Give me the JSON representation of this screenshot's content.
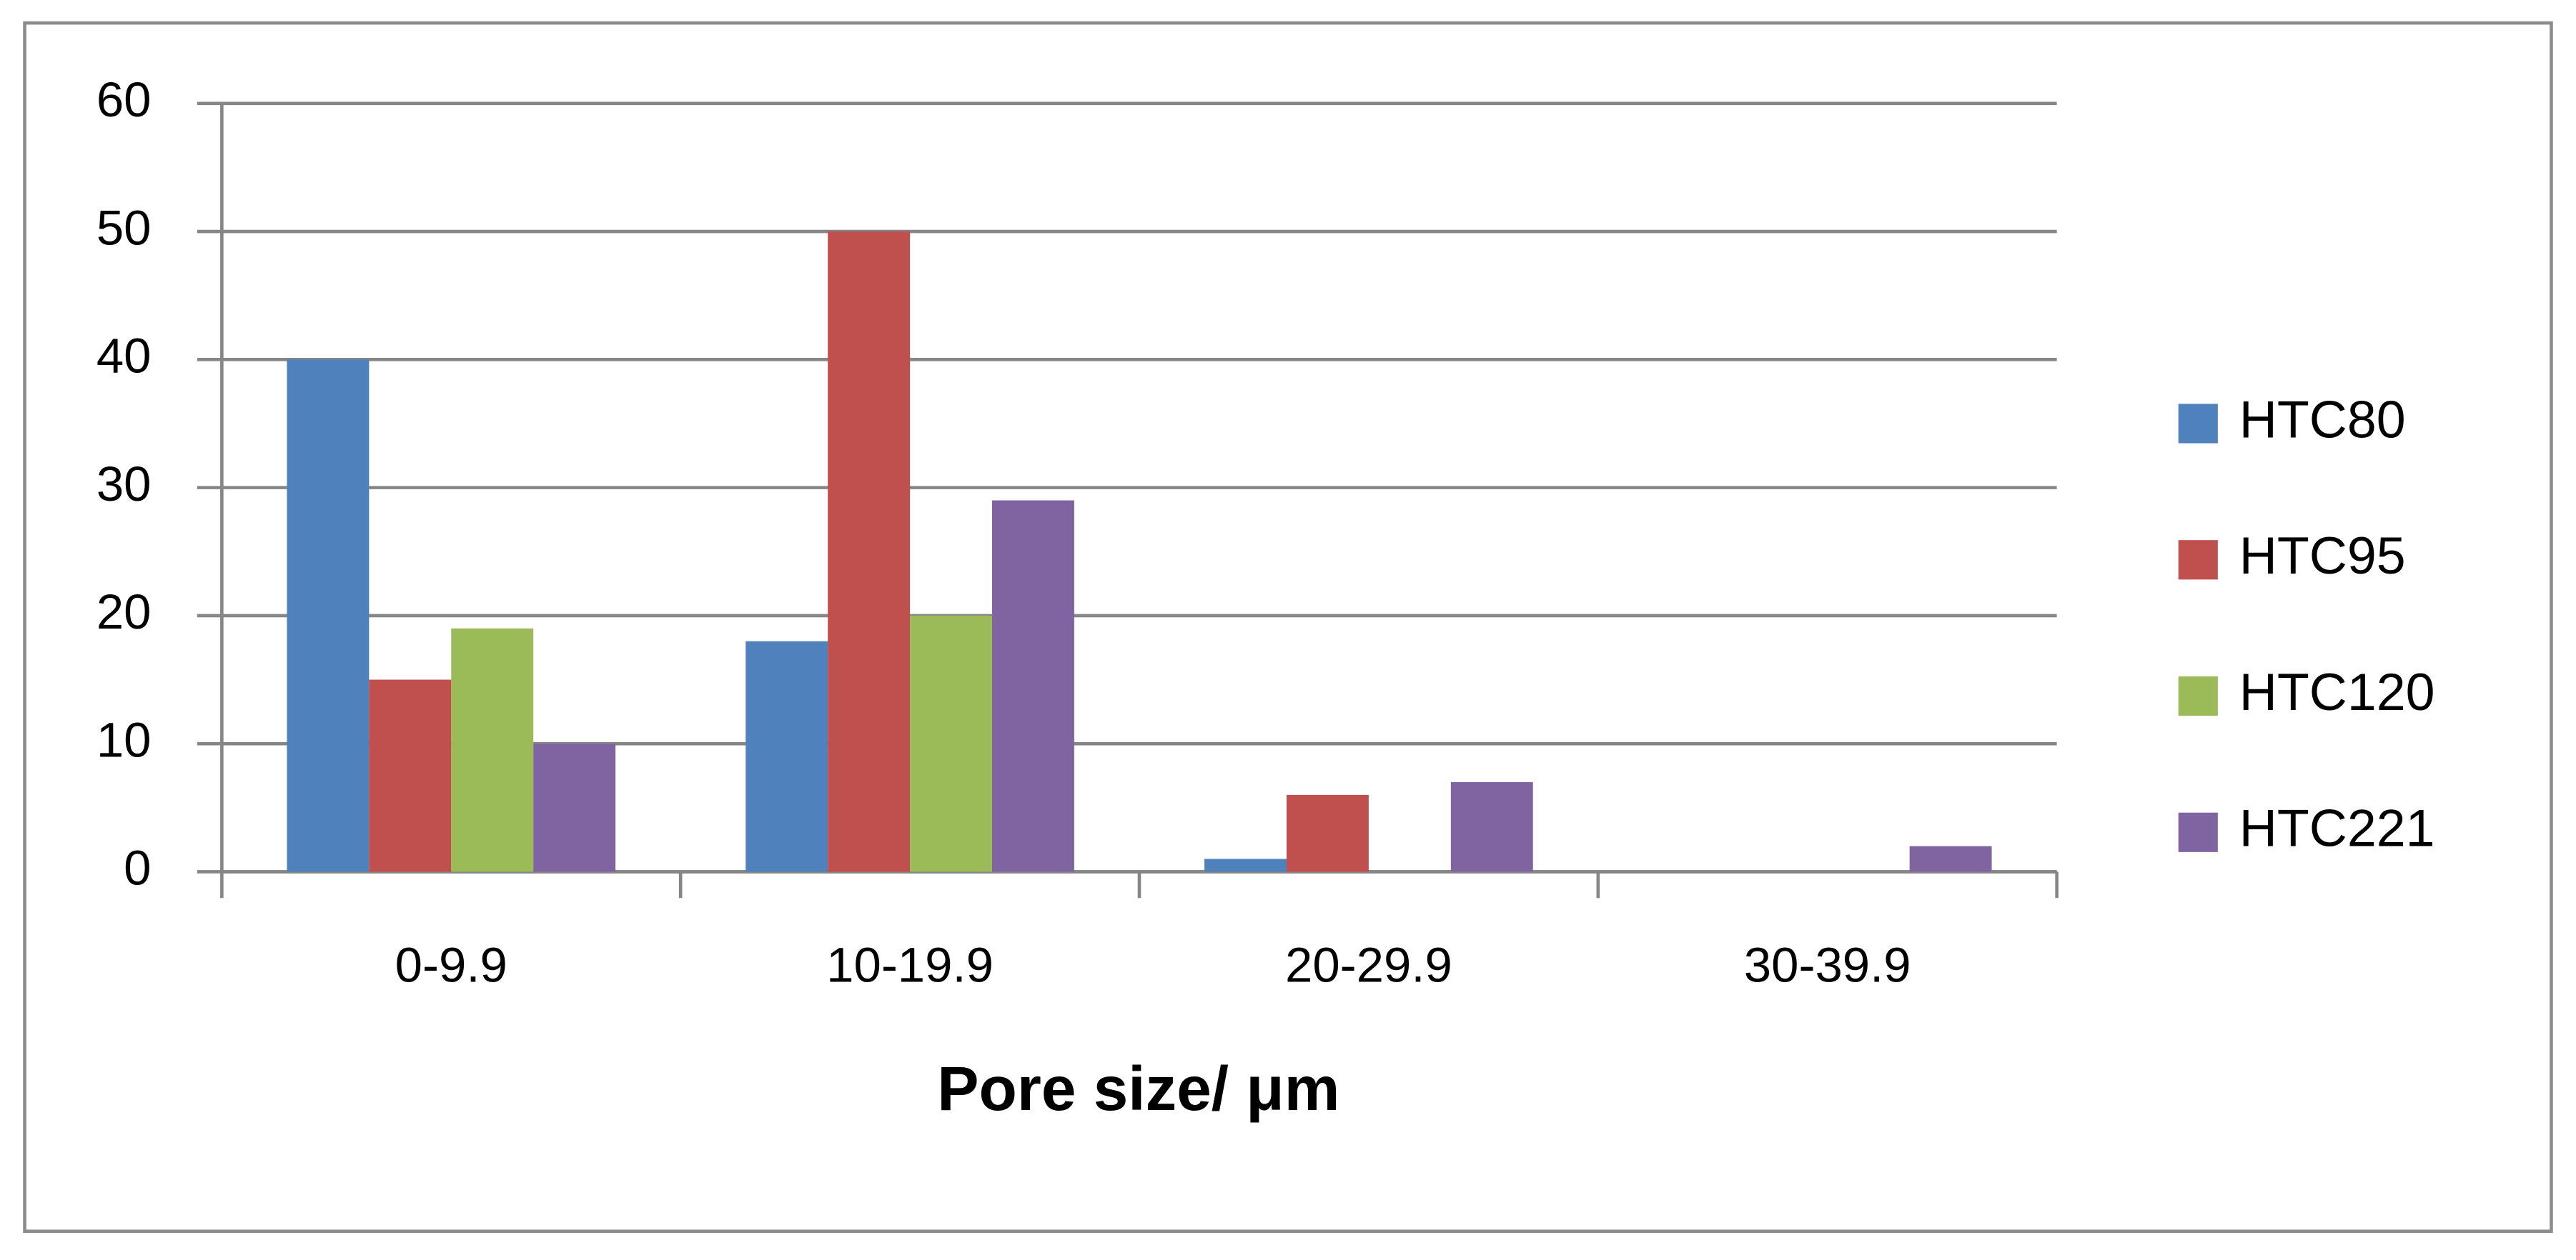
{
  "chart_data": {
    "type": "bar",
    "x_label": "Pore size/ μm",
    "categories": [
      "0-9.9",
      "10-19.9",
      "20-29.9",
      "30-39.9"
    ],
    "series": [
      {
        "name": "HTC80",
        "color": "#4f81bd",
        "values": [
          40,
          18,
          1,
          0
        ]
      },
      {
        "name": "HTC95",
        "color": "#c0504d",
        "values": [
          15,
          50,
          6,
          0
        ]
      },
      {
        "name": "HTC120",
        "color": "#9bbb59",
        "values": [
          19,
          20,
          0,
          0
        ]
      },
      {
        "name": "HTC221",
        "color": "#8064a2",
        "values": [
          10,
          29,
          7,
          2
        ]
      }
    ],
    "ylim": [
      0,
      60
    ],
    "yticks": [
      0,
      10,
      20,
      30,
      40,
      50,
      60
    ],
    "grid": true,
    "legend": "right"
  }
}
